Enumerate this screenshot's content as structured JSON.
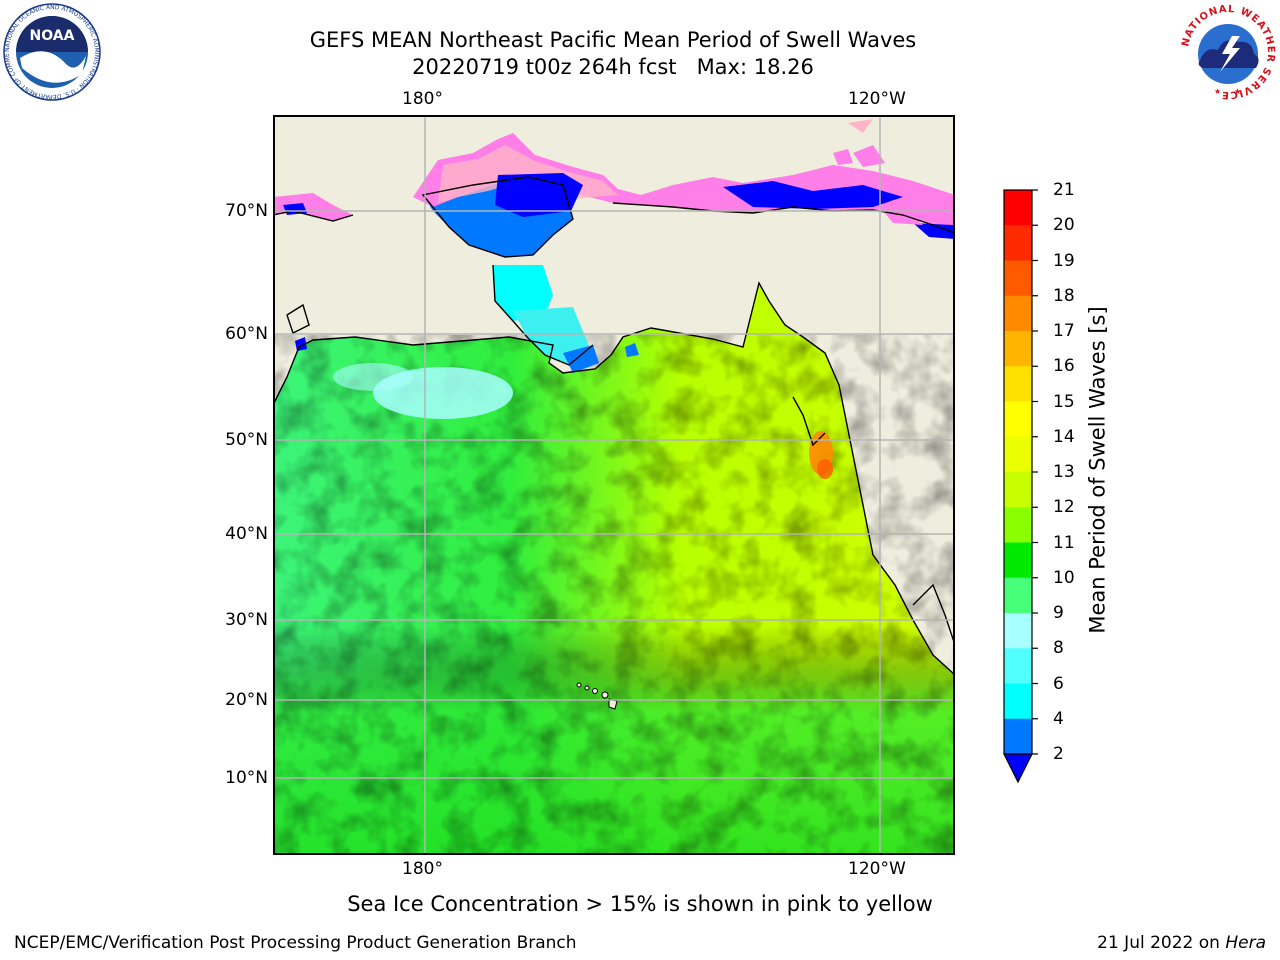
{
  "title": {
    "line1": "GEFS MEAN Northeast Pacific Mean Period of Swell Waves",
    "line2": "20220719 t00z 264h fcst   Max: 18.26"
  },
  "map": {
    "lon_labels_top": [
      "180°",
      "120°W"
    ],
    "lon_labels_bottom": [
      "180°",
      "120°W"
    ],
    "lat_labels": [
      "70°N",
      "60°N",
      "50°N",
      "40°N",
      "30°N",
      "20°N",
      "10°N"
    ],
    "colors": {
      "land": "#efedde",
      "ocean_dominant": "#41f541",
      "ice_pink": "#ff7ee8"
    }
  },
  "colorbar": {
    "label": "Mean Period of Swell Waves [s]",
    "ticks": [
      "21",
      "20",
      "19",
      "18",
      "17",
      "16",
      "15",
      "14",
      "13",
      "12",
      "11",
      "10",
      "9",
      "8",
      "6",
      "4",
      "2"
    ],
    "colors": [
      "#ff0000",
      "#ff2a00",
      "#ff5a00",
      "#ff8a00",
      "#ffb400",
      "#ffe100",
      "#ffff00",
      "#eaff00",
      "#c8ff00",
      "#8aff00",
      "#00ea00",
      "#47ff79",
      "#a8ffff",
      "#52ffff",
      "#00ffff",
      "#0078ff"
    ],
    "extend_color": "#0000ff"
  },
  "subtitle": "Sea Ice Concentration > 15% is shown in pink to yellow",
  "footer": {
    "left": "NCEP/EMC/Verification Post Processing Product Generation Branch",
    "right_prefix": "21 Jul 2022 on ",
    "right_host": "Hera"
  },
  "logos": {
    "noaa_text": "NOAA",
    "noaa_ring": "NATIONAL OCEANIC AND ATMOSPHERIC ADMINISTRATION · U.S. DEPARTMENT OF COMMERCE",
    "nws_ring": "NATIONAL WEATHER SERVICE"
  }
}
